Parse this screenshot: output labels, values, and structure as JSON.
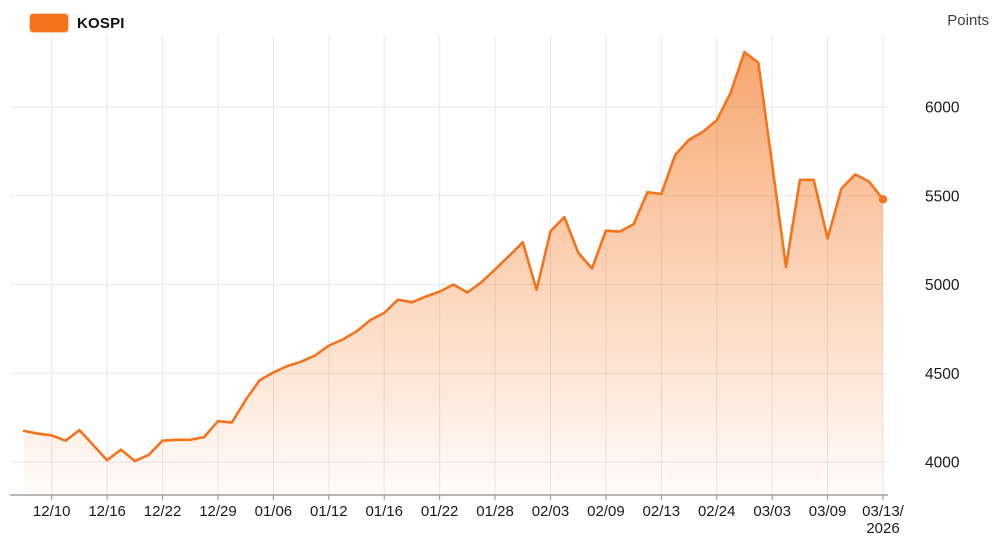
{
  "legend": {
    "label": "KOSPI"
  },
  "y_axis_title": "Points",
  "colors": {
    "line": "#f3741d",
    "fill_base": "#f3741d",
    "grid": "#e8e8e8",
    "axis": "#8c8c8c",
    "tick_text": "#1a1a1a",
    "axis_title_text": "#3d3d3d"
  },
  "chart_data": {
    "type": "area",
    "title": "KOSPI",
    "xlabel": "",
    "ylabel": "Points",
    "ylim": [
      3900,
      6400
    ],
    "y_ticks": [
      4000,
      4500,
      5000,
      5500,
      6000
    ],
    "grid": true,
    "legend_position": "top-left",
    "x_tick_labels": [
      "12/10",
      "12/16",
      "12/22",
      "12/29",
      "01/06",
      "01/12",
      "01/16",
      "01/22",
      "01/28",
      "02/03",
      "02/09",
      "02/13",
      "02/24",
      "03/03",
      "03/09",
      "03/13/2026"
    ],
    "first_label_index": 2,
    "label_every": 4,
    "series": [
      {
        "name": "KOSPI",
        "values": [
          4175,
          4160,
          4150,
          4120,
          4180,
          4095,
          4010,
          4070,
          4005,
          4040,
          4120,
          4125,
          4125,
          4140,
          4230,
          4222,
          4350,
          4460,
          4505,
          4540,
          4565,
          4600,
          4655,
          4690,
          4735,
          4800,
          4840,
          4915,
          4900,
          4932,
          4960,
          5000,
          4955,
          5012,
          5085,
          5160,
          5238,
          4970,
          5300,
          5380,
          5180,
          5090,
          5303,
          5298,
          5340,
          5520,
          5510,
          5730,
          5815,
          5860,
          5925,
          6080,
          6310,
          6250,
          5675,
          5100,
          5590,
          5590,
          5260,
          5540,
          5620,
          5580,
          5480
        ]
      }
    ],
    "last_value": 5480
  }
}
